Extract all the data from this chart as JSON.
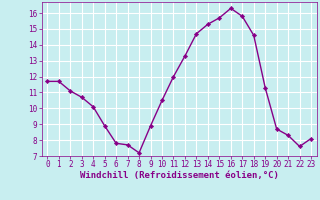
{
  "x": [
    0,
    1,
    2,
    3,
    4,
    5,
    6,
    7,
    8,
    9,
    10,
    11,
    12,
    13,
    14,
    15,
    16,
    17,
    18,
    19,
    20,
    21,
    22,
    23
  ],
  "y": [
    11.7,
    11.7,
    11.1,
    10.7,
    10.1,
    8.9,
    7.8,
    7.7,
    7.2,
    8.9,
    10.5,
    12.0,
    13.3,
    14.7,
    15.3,
    15.7,
    16.3,
    15.8,
    14.6,
    11.3,
    8.7,
    8.3,
    7.6,
    8.1
  ],
  "xlim": [
    -0.5,
    23.5
  ],
  "ylim": [
    7,
    16.7
  ],
  "yticks": [
    7,
    8,
    9,
    10,
    11,
    12,
    13,
    14,
    15,
    16
  ],
  "xticks": [
    0,
    1,
    2,
    3,
    4,
    5,
    6,
    7,
    8,
    9,
    10,
    11,
    12,
    13,
    14,
    15,
    16,
    17,
    18,
    19,
    20,
    21,
    22,
    23
  ],
  "xlabel": "Windchill (Refroidissement éolien,°C)",
  "line_color": "#880088",
  "marker_color": "#880088",
  "bg_color": "#c8eef0",
  "grid_color": "#ffffff",
  "tick_color": "#880088",
  "label_color": "#880088",
  "marker": "D",
  "marker_size": 2.2,
  "line_width": 1.0,
  "xlabel_fontsize": 6.5,
  "tick_fontsize": 5.5
}
